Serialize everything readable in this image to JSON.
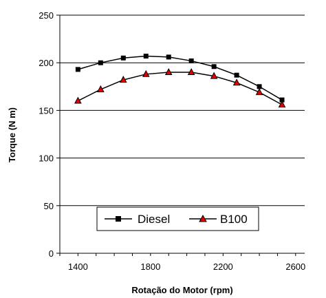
{
  "chart_data": {
    "type": "line",
    "title": "",
    "xlabel": "Rotação do Motor (rpm)",
    "ylabel": "Torque (N m)",
    "xlim": [
      1300,
      2650
    ],
    "ylim": [
      0,
      250
    ],
    "x_ticks": [
      1400,
      1800,
      2200,
      2600
    ],
    "y_ticks": [
      0,
      50,
      100,
      150,
      200,
      250
    ],
    "grid": "horizontal",
    "legend_position": "bottom-center",
    "series": [
      {
        "name": "Diesel",
        "marker": "square",
        "color": "#000000",
        "x": [
          1400,
          1525,
          1650,
          1775,
          1900,
          2025,
          2150,
          2275,
          2400,
          2525
        ],
        "y": [
          193,
          200,
          205,
          207,
          206,
          202,
          196,
          187,
          175,
          161
        ]
      },
      {
        "name": "B100",
        "marker": "triangle",
        "color": "#000000",
        "marker_fill": "#e00000",
        "x": [
          1400,
          1525,
          1650,
          1775,
          1900,
          2025,
          2150,
          2275,
          2400,
          2525
        ],
        "y": [
          160,
          172,
          182,
          188,
          190,
          190,
          186,
          179,
          169,
          156
        ]
      }
    ]
  }
}
